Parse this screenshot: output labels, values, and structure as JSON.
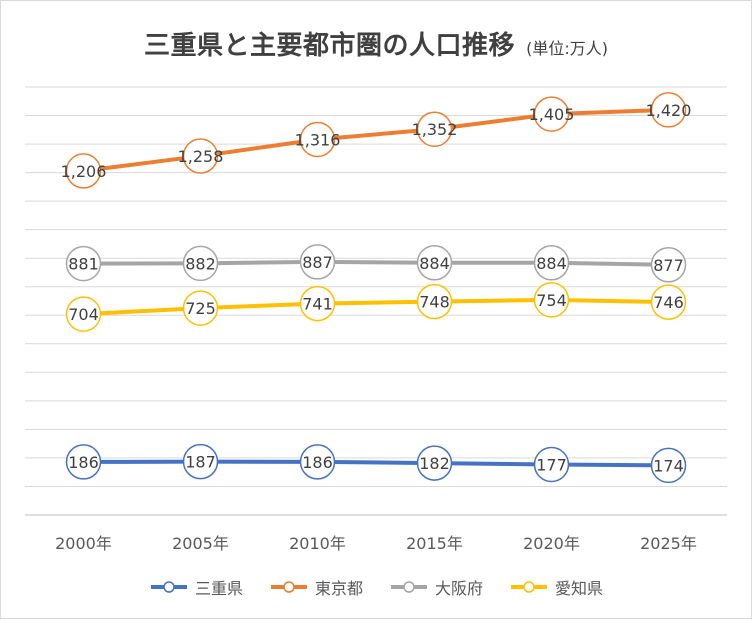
{
  "title": "三重県と主要都市圏の人口推移",
  "subtitle": "(単位:万人)",
  "chart_data": {
    "type": "line",
    "title": "三重県と主要都市圏の人口推移",
    "subtitle": "(単位:万人)",
    "categories": [
      "2000年",
      "2005年",
      "2010年",
      "2015年",
      "2020年",
      "2025年"
    ],
    "series": [
      {
        "name": "三重県",
        "color": "#4472c4",
        "values": [
          186,
          187,
          186,
          182,
          177,
          174
        ]
      },
      {
        "name": "東京都",
        "color": "#ed7d31",
        "values": [
          1206,
          1258,
          1316,
          1352,
          1405,
          1420
        ]
      },
      {
        "name": "大阪府",
        "color": "#a5a5a5",
        "values": [
          881,
          882,
          887,
          884,
          884,
          877
        ]
      },
      {
        "name": "愛知県",
        "color": "#ffc000",
        "values": [
          704,
          725,
          741,
          748,
          754,
          746
        ]
      }
    ],
    "data_labels": [
      [
        "186",
        "187",
        "186",
        "182",
        "177",
        "174"
      ],
      [
        "1,206",
        "1,258",
        "1,316",
        "1,352",
        "1,405",
        "1,420"
      ],
      [
        "881",
        "882",
        "887",
        "884",
        "884",
        "877"
      ],
      [
        "704",
        "725",
        "741",
        "748",
        "754",
        "746"
      ]
    ],
    "ylim": [
      0,
      1500
    ],
    "y_axis_labels_shown": false,
    "grid": true,
    "legend_position": "bottom",
    "markers": "circle"
  }
}
